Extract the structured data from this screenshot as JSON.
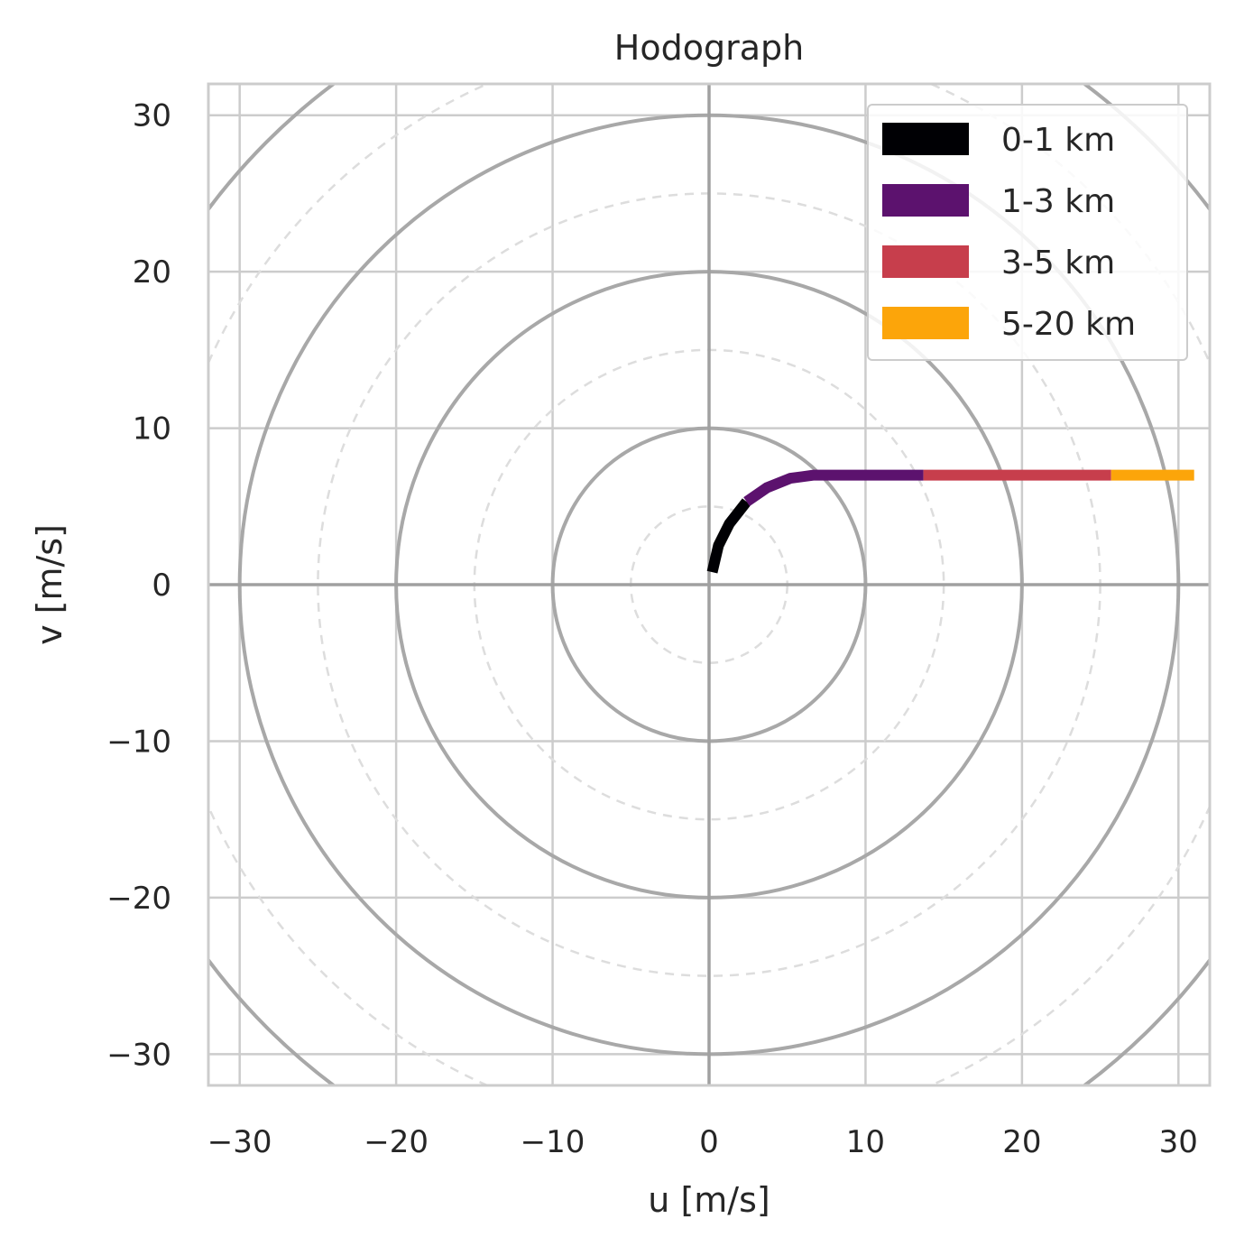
{
  "chart_data": {
    "type": "line",
    "title": "Hodograph",
    "xlabel": "u [m/s]",
    "ylabel": "v [m/s]",
    "xlim": [
      -32,
      32
    ],
    "ylim": [
      -32,
      32
    ],
    "xticks": [
      -30,
      -20,
      -10,
      0,
      10,
      20,
      30
    ],
    "yticks": [
      -30,
      -20,
      -10,
      0,
      10,
      20,
      30
    ],
    "tick_labels_x": [
      "−30",
      "−20",
      "−10",
      "0",
      "10",
      "20",
      "30"
    ],
    "tick_labels_y": [
      "−30",
      "−20",
      "−10",
      "0",
      "10",
      "20",
      "30"
    ],
    "grid": true,
    "rings_solid": [
      10,
      20,
      30,
      40
    ],
    "rings_dashed": [
      5,
      15,
      25,
      35
    ],
    "legend_position": "top-right",
    "series": [
      {
        "name": "0-1 km",
        "color": "#000004",
        "points": [
          [
            0.2,
            0.8
          ],
          [
            0.6,
            2.5
          ],
          [
            1.3,
            3.9
          ],
          [
            2.4,
            5.3
          ]
        ]
      },
      {
        "name": "1-3 km",
        "color": "#5c126e",
        "points": [
          [
            2.4,
            5.3
          ],
          [
            3.7,
            6.2
          ],
          [
            5.2,
            6.8
          ],
          [
            6.7,
            7.0
          ],
          [
            9.0,
            7.0
          ],
          [
            11.5,
            7.0
          ],
          [
            13.7,
            7.0
          ]
        ]
      },
      {
        "name": "3-5 km",
        "color": "#c73e4c",
        "points": [
          [
            13.7,
            7.0
          ],
          [
            16.7,
            7.0
          ],
          [
            19.7,
            7.0
          ],
          [
            22.7,
            7.0
          ],
          [
            25.7,
            7.0
          ]
        ]
      },
      {
        "name": "5-20 km",
        "color": "#fca50a",
        "points": [
          [
            25.7,
            7.0
          ],
          [
            28.3,
            7.0
          ],
          [
            31.0,
            7.0
          ]
        ]
      }
    ]
  }
}
